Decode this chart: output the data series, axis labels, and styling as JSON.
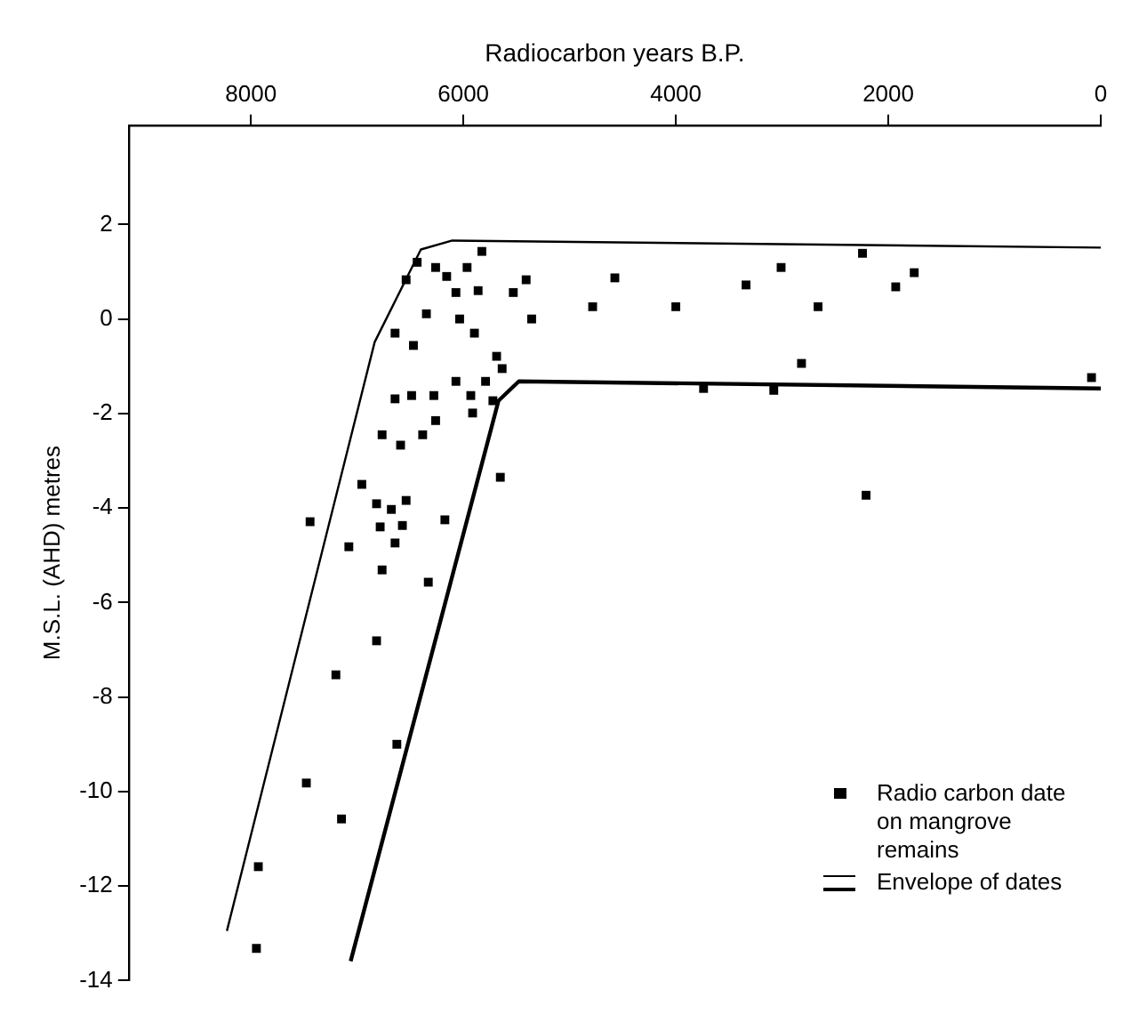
{
  "chart_data": {
    "type": "scatter",
    "xlabel": "Radiocarbon years B.P.",
    "ylabel": "M.S.L. (AHD) metres",
    "xlim": [
      9150,
      0
    ],
    "xticks": [
      8000,
      6000,
      4000,
      2000,
      0
    ],
    "ylim": [
      -14,
      4.1
    ],
    "yticks": [
      -14,
      -12,
      -10,
      -8,
      -6,
      -4,
      -2,
      0,
      2
    ],
    "grid": false,
    "legend": "bottom right",
    "marker": "square",
    "series": [
      {
        "name": "Radio carbon date on mangrove remains",
        "type": "scatter",
        "color": "#000000",
        "x": [
          5826,
          6435,
          6539,
          6261,
          6157,
          5965,
          6070,
          5861,
          5409,
          5530,
          4574,
          4783,
          4000,
          6348,
          6035,
          5357,
          6643,
          5896,
          6470,
          5687,
          5635,
          6070,
          5791,
          3739,
          6643,
          6487,
          6278,
          5930,
          5722,
          5913,
          6261,
          6765,
          6383,
          6591,
          2243,
          3009,
          3339,
          1756,
          1930,
          2661,
          2817,
          87,
          3078,
          2209,
          5652,
          6956,
          6817,
          6678,
          6539,
          7443,
          6174,
          6783,
          6574,
          7078,
          6643,
          6765,
          6330,
          6817,
          7200,
          6626,
          7478,
          7147,
          7930,
          7948
        ],
        "values": [
          1.43,
          1.2,
          0.83,
          1.09,
          0.9,
          1.09,
          0.56,
          0.6,
          0.83,
          0.56,
          0.87,
          0.26,
          0.26,
          0.11,
          0,
          0,
          -0.3,
          -0.3,
          -0.56,
          -0.79,
          -1.05,
          -1.32,
          -1.32,
          -1.47,
          -1.69,
          -1.62,
          -1.62,
          -1.62,
          -1.73,
          -1.99,
          -2.15,
          -2.45,
          -2.45,
          -2.67,
          1.39,
          1.09,
          0.72,
          0.98,
          0.68,
          0.26,
          -0.94,
          -1.24,
          -1.51,
          -3.73,
          -3.35,
          -3.5,
          -3.91,
          -4.03,
          -3.84,
          -4.29,
          -4.25,
          -4.4,
          -4.37,
          -4.82,
          -4.74,
          -5.31,
          -5.57,
          -6.81,
          -7.53,
          -9,
          -9.82,
          -10.58,
          -11.59,
          -13.32
        ]
      },
      {
        "name": "Envelope of dates",
        "type": "line",
        "marker": "none",
        "color": "#000000",
        "x": [
          8226,
          6835,
          6400,
          6104,
          0
        ],
        "values": [
          -12.95,
          -0.49,
          1.47,
          1.66,
          1.51
        ]
      },
      {
        "type": "line",
        "marker": "none",
        "color": "#000000",
        "x": [
          7061,
          5669,
          5478,
          0
        ],
        "values": [
          -13.59,
          -1.73,
          -1.32,
          -1.47
        ]
      }
    ]
  }
}
